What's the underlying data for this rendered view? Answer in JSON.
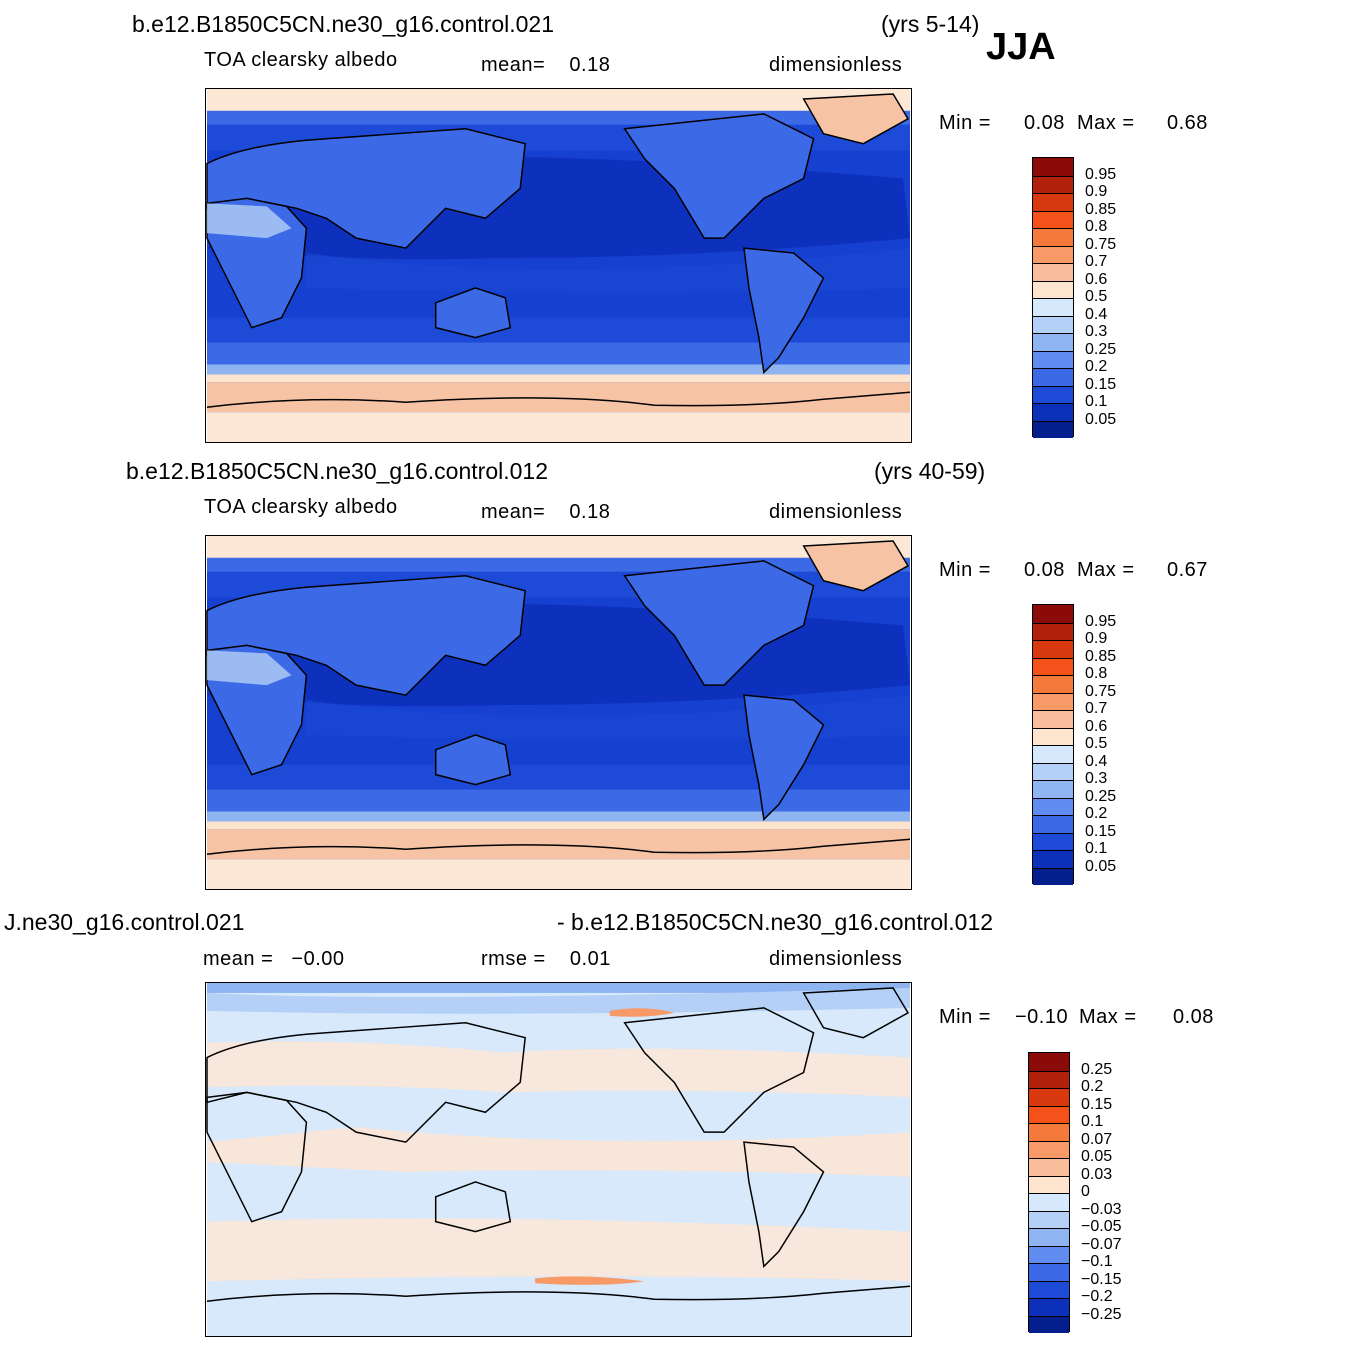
{
  "season": "JJA",
  "colors": {
    "ocean_deep": "#0a2aa0",
    "ocean_mid": "#1640d0",
    "land_mid": "#2c5ee6",
    "land_light": "#7aa0f0",
    "ice_cream": "#fde8d6",
    "ice_peach": "#f6c3a4",
    "diff_base": "#d7e9fb",
    "diff_warm": "#fde6d6",
    "coast": "#000000"
  },
  "panels": [
    {
      "case": "b.e12.B1850C5CN.ne30_g16.control.021",
      "years": "(yrs 5-14)",
      "variable": "TOA clearsky albedo",
      "stat1": "mean=    0.18",
      "units": "dimensionless",
      "min_label": "Min =",
      "min_value": "0.08",
      "max_label": "Max =",
      "max_value": "0.68"
    },
    {
      "case": "b.e12.B1850C5CN.ne30_g16.control.012",
      "years": "(yrs 40-59)",
      "variable": "TOA clearsky albedo",
      "stat1": "mean=    0.18",
      "units": "dimensionless",
      "min_label": "Min =",
      "min_value": "0.08",
      "max_label": "Max =",
      "max_value": "0.67"
    },
    {
      "case_left": "J.ne30_g16.control.021",
      "case_right": "- b.e12.B1850C5CN.ne30_g16.control.012",
      "stat1": "mean =   −0.00",
      "stat2": "rmse =    0.01",
      "units": "dimensionless",
      "min_label": "Min =",
      "min_value": "−0.10",
      "max_label": "Max =",
      "max_value": "0.08"
    }
  ],
  "colorbar_abs": {
    "labels": [
      "0.95",
      "0.9",
      "0.85",
      "0.8",
      "0.75",
      "0.7",
      "0.6",
      "0.5",
      "0.4",
      "0.3",
      "0.25",
      "0.2",
      "0.15",
      "0.1",
      "0.05"
    ],
    "colors": [
      "#8b0a0a",
      "#b0200a",
      "#d8380e",
      "#f4521a",
      "#f47a3c",
      "#f79a68",
      "#f9bd9b",
      "#fde4cf",
      "#d6e8fb",
      "#b4d0f6",
      "#8eb4f2",
      "#5f8cee",
      "#3c6ae6",
      "#1d4ad6",
      "#0c30ba",
      "#041e8e"
    ]
  },
  "colorbar_diff": {
    "labels": [
      "0.25",
      "0.2",
      "0.15",
      "0.1",
      "0.07",
      "0.05",
      "0.03",
      "0",
      "−0.03",
      "−0.05",
      "−0.07",
      "−0.1",
      "−0.15",
      "−0.2",
      "−0.25"
    ],
    "colors": [
      "#8b0a0a",
      "#b0200a",
      "#d8380e",
      "#f4521a",
      "#f47a3c",
      "#f79a68",
      "#f9bd9b",
      "#fde4cf",
      "#d6e8fb",
      "#b4d0f6",
      "#8eb4f2",
      "#5f8cee",
      "#3c6ae6",
      "#1d4ad6",
      "#0c30ba",
      "#041e8e"
    ]
  }
}
